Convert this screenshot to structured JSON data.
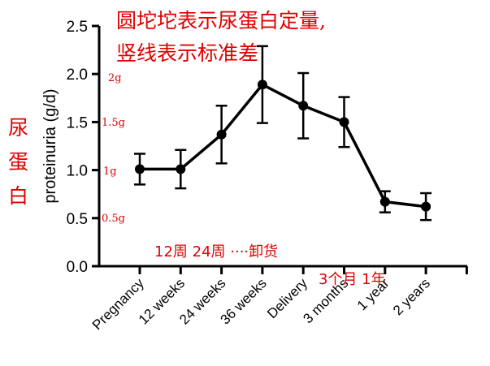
{
  "chart_data": {
    "type": "line",
    "ylabel": "proteinuria (g/d)",
    "ylim": [
      0,
      2.5
    ],
    "yticks": [
      "0.0",
      "0.5",
      "1.0",
      "1.5",
      "2.0",
      "2.5"
    ],
    "categories": [
      "Pregnancy",
      "12 weeks",
      "24 weeks",
      "36 weeks",
      "Delivery",
      "3 months",
      "1 year",
      "2 years"
    ],
    "values": [
      1.01,
      1.01,
      1.37,
      1.89,
      1.67,
      1.5,
      0.67,
      0.62
    ],
    "error": [
      0.16,
      0.2,
      0.3,
      0.4,
      0.34,
      0.26,
      0.11,
      0.14
    ],
    "grid": false,
    "annotations": {
      "top_line1": "圆坨坨表示尿蛋白定量,",
      "top_line2": "竖线表示标准差",
      "left_title": [
        "尿",
        "蛋",
        "白"
      ],
      "y_cn": [
        "2g",
        "1.5g",
        "1g",
        "0.5g"
      ],
      "bottom_note": "12周 24周 ····卸货",
      "bottom_note2": "3个月 1年"
    }
  }
}
